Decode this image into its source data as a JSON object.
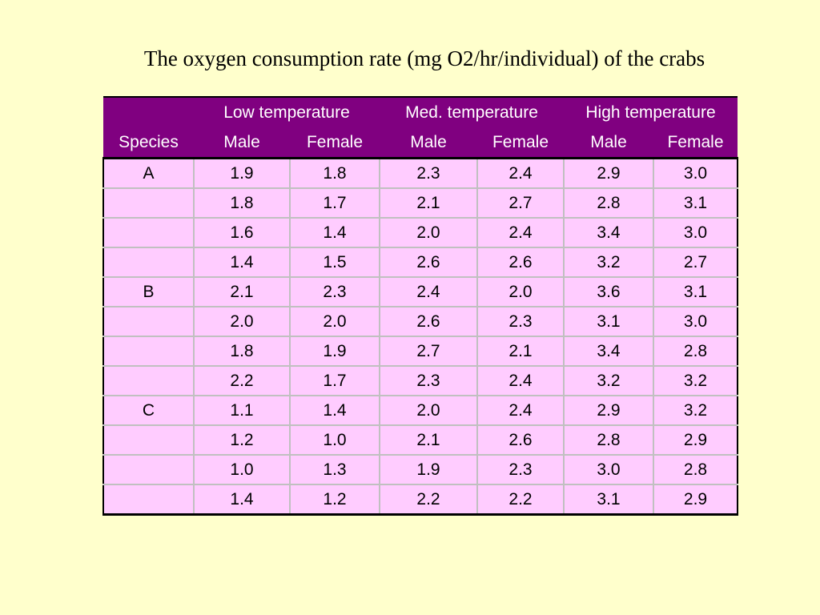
{
  "title": "The oxygen consumption rate (mg O2/hr/individual) of the crabs",
  "table": {
    "temperature_headers": [
      "Low temperature",
      "Med. temperature",
      "High temperature"
    ],
    "species_header": "Species",
    "sex_headers": [
      "Male",
      "Female",
      "Male",
      "Female",
      "Male",
      "Female"
    ],
    "groups": [
      {
        "species": "A",
        "rows": [
          [
            "1.9",
            "1.8",
            "2.3",
            "2.4",
            "2.9",
            "3.0"
          ],
          [
            "1.8",
            "1.7",
            "2.1",
            "2.7",
            "2.8",
            "3.1"
          ],
          [
            "1.6",
            "1.4",
            "2.0",
            "2.4",
            "3.4",
            "3.0"
          ],
          [
            "1.4",
            "1.5",
            "2.6",
            "2.6",
            "3.2",
            "2.7"
          ]
        ]
      },
      {
        "species": "B",
        "rows": [
          [
            "2.1",
            "2.3",
            "2.4",
            "2.0",
            "3.6",
            "3.1"
          ],
          [
            "2.0",
            "2.0",
            "2.6",
            "2.3",
            "3.1",
            "3.0"
          ],
          [
            "1.8",
            "1.9",
            "2.7",
            "2.1",
            "3.4",
            "2.8"
          ],
          [
            "2.2",
            "1.7",
            "2.3",
            "2.4",
            "3.2",
            "3.2"
          ]
        ]
      },
      {
        "species": "C",
        "rows": [
          [
            "1.1",
            "1.4",
            "2.0",
            "2.4",
            "2.9",
            "3.2"
          ],
          [
            "1.2",
            "1.0",
            "2.1",
            "2.6",
            "2.8",
            "2.9"
          ],
          [
            "1.0",
            "1.3",
            "1.9",
            "2.3",
            "3.0",
            "2.8"
          ],
          [
            "1.4",
            "1.2",
            "2.2",
            "2.2",
            "3.1",
            "2.9"
          ]
        ]
      }
    ]
  }
}
